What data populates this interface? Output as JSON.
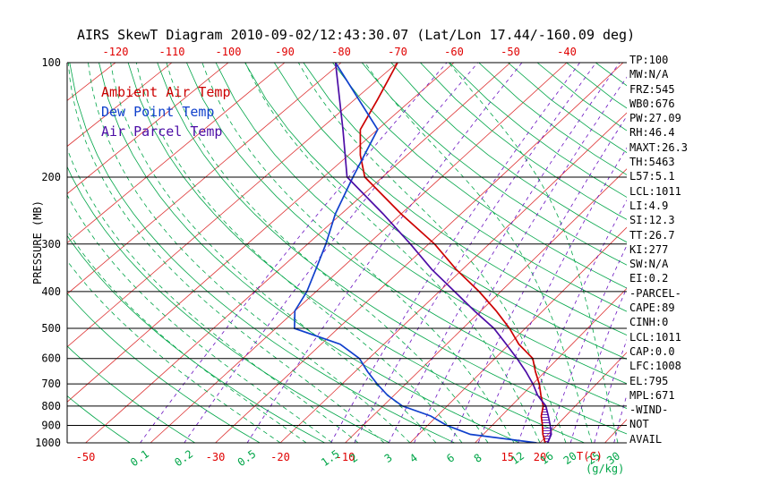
{
  "title": "AIRS SkewT Diagram 2010-09-02/12:43:30.07 (Lat/Lon 17.44/-160.09 deg)",
  "legend": [
    {
      "label": "Ambient Air Temp",
      "color": "#cc0000"
    },
    {
      "label": "Dew Point Temp",
      "color": "#1040cc"
    },
    {
      "label": "Air Parcel Temp",
      "color": "#4c0da6"
    }
  ],
  "axes": {
    "pressure_label": "PRESSURE (MB)",
    "temp_unit": "T(C)",
    "mixing_unit": "(g/kg)",
    "pressure_ticks": [
      100,
      200,
      300,
      400,
      500,
      600,
      700,
      800,
      900,
      1000
    ],
    "top_temp_ticks": [
      -120,
      -110,
      -100,
      -90,
      -80,
      -70,
      -60,
      -50,
      -40
    ],
    "bottom_temp_ticks": [
      -50,
      -30,
      -20,
      -10,
      15,
      20
    ],
    "mixing_ratio_ticks": [
      0.1,
      0.2,
      0.5,
      1.5,
      2,
      3,
      4,
      6,
      8,
      12,
      16,
      20,
      25,
      30
    ]
  },
  "stats_panel": {
    "lines": [
      "TP:100",
      "MW:N/A",
      "FRZ:545",
      "WB0:676",
      "PW:27.09",
      "RH:46.4",
      "MAXT:26.3",
      "TH:5463",
      "L57:5.1",
      "LCL:1011",
      "LI:4.9",
      "SI:12.3",
      "TT:26.7",
      "KI:277",
      "SW:N/A",
      "EI:0.2",
      "-PARCEL-",
      "CAPE:89",
      "CINH:0",
      "LCL:1011",
      "CAP:0.0",
      "LFC:1008",
      "EL:795",
      "MPL:671",
      "-WIND-",
      "NOT",
      "AVAIL"
    ]
  },
  "colors": {
    "isotherm": "#dd3333",
    "dry_adiabat": "#00a548",
    "moist_adiabat": "#00a548",
    "mixing_ratio": "#6a11c0",
    "tick_red": "#e00000",
    "tick_green": "#00a548",
    "axis": "#000000",
    "hatch": "#5b10b0"
  },
  "chart_data": {
    "type": "line",
    "title": "AIRS SkewT Diagram (skew-T / log-P)",
    "xlabel": "Temperature (C), skewed",
    "ylabel": "Pressure (MB), log scale",
    "ylim": [
      100,
      1000
    ],
    "grid": "skew-t background: isotherms / dry adiabats / moist adiabats / mixing-ratio lines",
    "legend_position": "upper-left inside plot",
    "isotherms": [
      -130,
      -120,
      -110,
      -100,
      -90,
      -80,
      -70,
      -60,
      -50,
      -40,
      -30,
      -20,
      -10,
      0,
      10,
      20,
      30,
      40
    ],
    "dry_adiabats_K": [
      220,
      230,
      240,
      250,
      260,
      270,
      280,
      290,
      300,
      310,
      320,
      330,
      340,
      350,
      360,
      370,
      380,
      390,
      400,
      410,
      420,
      430,
      440,
      450,
      460
    ],
    "moist_adiabats_C": [
      -20,
      -16,
      -12,
      -8,
      -4,
      0,
      4,
      8,
      12,
      16,
      20,
      24,
      28,
      32
    ],
    "mixing_ratios_gkg": [
      0.1,
      0.2,
      0.5,
      1.5,
      2,
      3,
      4,
      6,
      8,
      12,
      16,
      20,
      25,
      30
    ],
    "series": [
      {
        "name": "Ambient Air Temp",
        "color": "#cc0000",
        "points": [
          [
            1000,
            20.8
          ],
          [
            950,
            19.2
          ],
          [
            900,
            17.8
          ],
          [
            850,
            16.2
          ],
          [
            800,
            15.0
          ],
          [
            750,
            13.0
          ],
          [
            700,
            11.0
          ],
          [
            650,
            8.5
          ],
          [
            600,
            6.0
          ],
          [
            550,
            1.5
          ],
          [
            500,
            -2.5
          ],
          [
            450,
            -7.5
          ],
          [
            400,
            -13.5
          ],
          [
            350,
            -21.0
          ],
          [
            300,
            -29.0
          ],
          [
            250,
            -40.0
          ],
          [
            200,
            -53.0
          ],
          [
            175,
            -58.0
          ],
          [
            150,
            -63.0
          ],
          [
            125,
            -66.0
          ],
          [
            100,
            -70.0
          ]
        ]
      },
      {
        "name": "Dew Point Temp",
        "color": "#1040cc",
        "points": [
          [
            1000,
            19.5
          ],
          [
            950,
            8.0
          ],
          [
            900,
            3.0
          ],
          [
            850,
            -1.0
          ],
          [
            800,
            -7.0
          ],
          [
            750,
            -11.0
          ],
          [
            700,
            -14.5
          ],
          [
            650,
            -18.0
          ],
          [
            600,
            -21.5
          ],
          [
            550,
            -27.0
          ],
          [
            500,
            -37.0
          ],
          [
            450,
            -40.0
          ],
          [
            400,
            -41.5
          ],
          [
            350,
            -44.0
          ],
          [
            300,
            -47.0
          ],
          [
            250,
            -51.0
          ],
          [
            200,
            -55.0
          ],
          [
            150,
            -60.0
          ],
          [
            100,
            -81.0
          ]
        ]
      },
      {
        "name": "Air Parcel Temp",
        "color": "#4c0da6",
        "points": [
          [
            1000,
            21.2
          ],
          [
            950,
            20.5
          ],
          [
            900,
            19.0
          ],
          [
            850,
            17.3
          ],
          [
            800,
            15.4
          ],
          [
            750,
            12.5
          ],
          [
            700,
            10.0
          ],
          [
            650,
            7.0
          ],
          [
            600,
            3.5
          ],
          [
            550,
            -0.5
          ],
          [
            500,
            -5.0
          ],
          [
            450,
            -11.0
          ],
          [
            400,
            -17.5
          ],
          [
            350,
            -25.0
          ],
          [
            300,
            -33.0
          ],
          [
            250,
            -43.0
          ],
          [
            200,
            -56.0
          ],
          [
            150,
            -66.0
          ],
          [
            100,
            -81.0
          ]
        ]
      }
    ],
    "cape_region": {
      "between": [
        "Air Parcel Temp",
        "Ambient Air Temp"
      ],
      "pressure_range": [
        1000,
        795
      ],
      "style": "purple hatch"
    }
  }
}
